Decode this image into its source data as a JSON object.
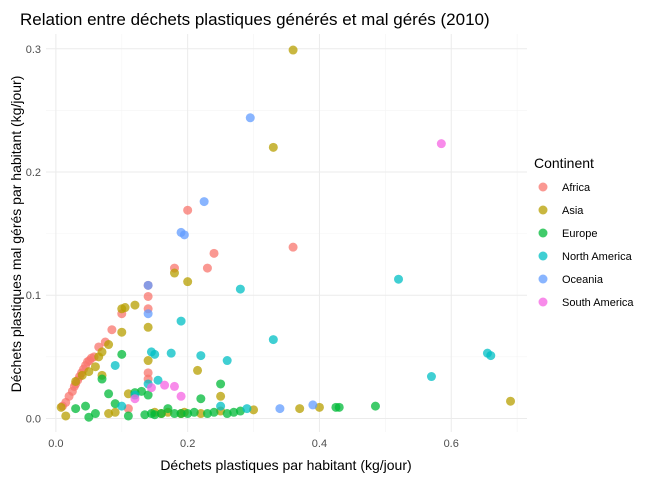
{
  "chart_data": {
    "type": "scatter",
    "title": "Relation entre déchets plastiques générés et mal gérés (2010)",
    "xlabel": "Déchets plastiques par habitant (kg/jour)",
    "ylabel": "Déchets plastiques mal gérés par habitant (kg/jour)",
    "xlim": [
      -0.015,
      0.715
    ],
    "ylim": [
      -0.011,
      0.312
    ],
    "x_ticks": [
      0.0,
      0.2,
      0.4,
      0.6
    ],
    "x_tick_labels": [
      "0.0",
      "0.2",
      "0.4",
      "0.6"
    ],
    "y_ticks": [
      0.0,
      0.1,
      0.2,
      0.3
    ],
    "y_tick_labels": [
      "0.0",
      "0.1",
      "0.2",
      "0.3"
    ],
    "grid": true,
    "legend": {
      "title": "Continent",
      "position": "right"
    },
    "series": [
      {
        "name": "Africa",
        "color": "#F8766D",
        "points": [
          [
            0.01,
            0.01
          ],
          [
            0.015,
            0.013
          ],
          [
            0.02,
            0.018
          ],
          [
            0.025,
            0.022
          ],
          [
            0.028,
            0.026
          ],
          [
            0.03,
            0.028
          ],
          [
            0.033,
            0.031
          ],
          [
            0.036,
            0.034
          ],
          [
            0.039,
            0.037
          ],
          [
            0.042,
            0.04
          ],
          [
            0.045,
            0.043
          ],
          [
            0.048,
            0.046
          ],
          [
            0.051,
            0.047
          ],
          [
            0.054,
            0.049
          ],
          [
            0.058,
            0.05
          ],
          [
            0.065,
            0.058
          ],
          [
            0.075,
            0.062
          ],
          [
            0.085,
            0.072
          ],
          [
            0.1,
            0.085
          ],
          [
            0.11,
            0.008
          ],
          [
            0.14,
            0.108
          ],
          [
            0.14,
            0.099
          ],
          [
            0.14,
            0.089
          ],
          [
            0.14,
            0.037
          ],
          [
            0.14,
            0.032
          ],
          [
            0.18,
            0.122
          ],
          [
            0.2,
            0.169
          ],
          [
            0.23,
            0.122
          ],
          [
            0.24,
            0.134
          ],
          [
            0.36,
            0.139
          ]
        ]
      },
      {
        "name": "Asia",
        "color": "#B79F00",
        "points": [
          [
            0.008,
            0.009
          ],
          [
            0.015,
            0.002
          ],
          [
            0.03,
            0.03
          ],
          [
            0.04,
            0.035
          ],
          [
            0.05,
            0.038
          ],
          [
            0.06,
            0.042
          ],
          [
            0.065,
            0.05
          ],
          [
            0.07,
            0.054
          ],
          [
            0.07,
            0.035
          ],
          [
            0.08,
            0.06
          ],
          [
            0.08,
            0.004
          ],
          [
            0.09,
            0.005
          ],
          [
            0.1,
            0.07
          ],
          [
            0.1,
            0.089
          ],
          [
            0.105,
            0.09
          ],
          [
            0.11,
            0.02
          ],
          [
            0.12,
            0.092
          ],
          [
            0.14,
            0.074
          ],
          [
            0.14,
            0.047
          ],
          [
            0.15,
            0.005
          ],
          [
            0.16,
            0.004
          ],
          [
            0.17,
            0.005
          ],
          [
            0.18,
            0.118
          ],
          [
            0.19,
            0.004
          ],
          [
            0.195,
            0.005
          ],
          [
            0.2,
            0.111
          ],
          [
            0.215,
            0.039
          ],
          [
            0.22,
            0.004
          ],
          [
            0.25,
            0.018
          ],
          [
            0.25,
            0.006
          ],
          [
            0.3,
            0.007
          ],
          [
            0.33,
            0.22
          ],
          [
            0.36,
            0.299
          ],
          [
            0.37,
            0.008
          ],
          [
            0.4,
            0.009
          ],
          [
            0.69,
            0.014
          ]
        ]
      },
      {
        "name": "Europe",
        "color": "#00BA38",
        "points": [
          [
            0.03,
            0.008
          ],
          [
            0.045,
            0.01
          ],
          [
            0.05,
            0.001
          ],
          [
            0.06,
            0.004
          ],
          [
            0.07,
            0.032
          ],
          [
            0.08,
            0.02
          ],
          [
            0.09,
            0.012
          ],
          [
            0.1,
            0.052
          ],
          [
            0.11,
            0.002
          ],
          [
            0.12,
            0.021
          ],
          [
            0.13,
            0.022
          ],
          [
            0.135,
            0.003
          ],
          [
            0.14,
            0.019
          ],
          [
            0.145,
            0.004
          ],
          [
            0.15,
            0.003
          ],
          [
            0.16,
            0.004
          ],
          [
            0.17,
            0.008
          ],
          [
            0.18,
            0.004
          ],
          [
            0.19,
            0.004
          ],
          [
            0.2,
            0.004
          ],
          [
            0.21,
            0.005
          ],
          [
            0.22,
            0.016
          ],
          [
            0.23,
            0.004
          ],
          [
            0.24,
            0.005
          ],
          [
            0.25,
            0.028
          ],
          [
            0.26,
            0.004
          ],
          [
            0.27,
            0.005
          ],
          [
            0.28,
            0.006
          ],
          [
            0.425,
            0.009
          ],
          [
            0.43,
            0.009
          ],
          [
            0.485,
            0.01
          ]
        ]
      },
      {
        "name": "North America",
        "color": "#00BFC4",
        "points": [
          [
            0.09,
            0.043
          ],
          [
            0.1,
            0.01
          ],
          [
            0.12,
            0.019
          ],
          [
            0.14,
            0.028
          ],
          [
            0.145,
            0.054
          ],
          [
            0.15,
            0.052
          ],
          [
            0.155,
            0.031
          ],
          [
            0.175,
            0.053
          ],
          [
            0.19,
            0.079
          ],
          [
            0.22,
            0.051
          ],
          [
            0.25,
            0.01
          ],
          [
            0.26,
            0.047
          ],
          [
            0.28,
            0.105
          ],
          [
            0.29,
            0.008
          ],
          [
            0.33,
            0.064
          ],
          [
            0.52,
            0.113
          ],
          [
            0.57,
            0.034
          ],
          [
            0.655,
            0.053
          ],
          [
            0.66,
            0.051
          ]
        ]
      },
      {
        "name": "Oceania",
        "color": "#619CFF",
        "points": [
          [
            0.14,
            0.108
          ],
          [
            0.14,
            0.085
          ],
          [
            0.19,
            0.151
          ],
          [
            0.195,
            0.149
          ],
          [
            0.225,
            0.176
          ],
          [
            0.295,
            0.244
          ],
          [
            0.34,
            0.008
          ],
          [
            0.39,
            0.011
          ]
        ]
      },
      {
        "name": "South America",
        "color": "#F564E3",
        "points": [
          [
            0.12,
            0.016
          ],
          [
            0.145,
            0.025
          ],
          [
            0.165,
            0.027
          ],
          [
            0.18,
            0.026
          ],
          [
            0.19,
            0.018
          ],
          [
            0.585,
            0.223
          ]
        ]
      }
    ]
  }
}
